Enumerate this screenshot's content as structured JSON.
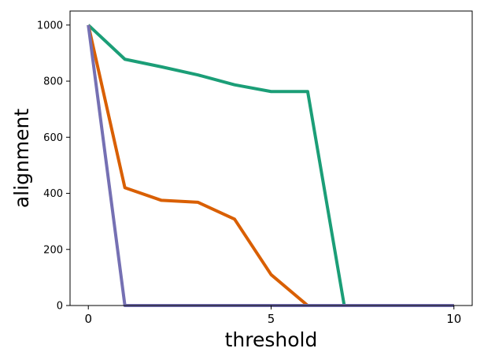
{
  "chart_data": {
    "type": "line",
    "title": "",
    "xlabel": "threshold",
    "ylabel": "alignment",
    "xlim": [
      -0.5,
      10.5
    ],
    "ylim": [
      0,
      1050
    ],
    "xticks": [
      0,
      5,
      10
    ],
    "yticks": [
      0,
      200,
      400,
      600,
      800,
      1000
    ],
    "xtick_labels": [
      "0",
      "5",
      "10"
    ],
    "ytick_labels": [
      "0",
      "200",
      "400",
      "600",
      "800",
      "1000"
    ],
    "grid": false,
    "legend": "none",
    "series": [
      {
        "color": "#1b9e77",
        "x": [
          0,
          1,
          2,
          3,
          4,
          5,
          6,
          7,
          8,
          9,
          10
        ],
        "y": [
          1000,
          878,
          851,
          822,
          787,
          763,
          763,
          0,
          0,
          0,
          0
        ]
      },
      {
        "color": "#d95f02",
        "x": [
          0,
          1,
          2,
          3,
          4,
          5,
          6,
          7,
          8,
          9,
          10
        ],
        "y": [
          1000,
          420,
          375,
          368,
          308,
          110,
          0,
          0,
          0,
          0,
          0
        ]
      },
      {
        "color": "#7570b3",
        "x": [
          0,
          1,
          2,
          3,
          4,
          5,
          6,
          7,
          8,
          9,
          10
        ],
        "y": [
          1000,
          0,
          0,
          0,
          0,
          0,
          0,
          0,
          0,
          0,
          0
        ]
      }
    ]
  }
}
